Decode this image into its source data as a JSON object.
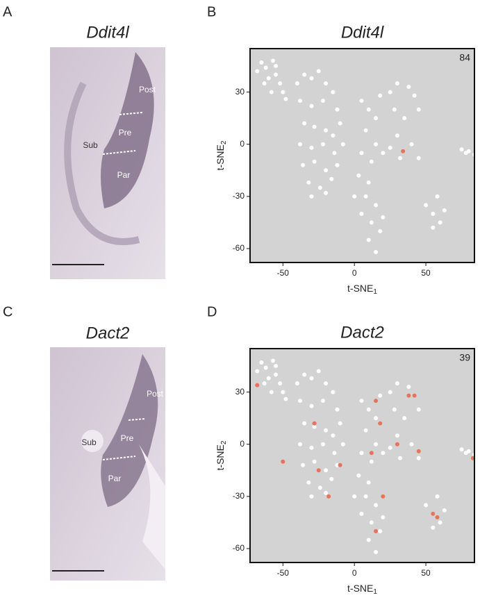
{
  "figure": {
    "panel_labels": [
      "A",
      "B",
      "C",
      "D"
    ],
    "images": [
      {
        "title": "Ddit4l",
        "regions": [
          "Sub",
          "Pre",
          "Par",
          "Post"
        ]
      },
      {
        "title": "Dact2",
        "regions": [
          "Sub",
          "Pre",
          "Par",
          "Post"
        ]
      }
    ]
  },
  "chart_data": [
    {
      "type": "scatter",
      "title": "Ddit4l",
      "annotation": "84",
      "xlabel": "t-SNE",
      "xlabel_subscript": "1",
      "ylabel": "t-SNE",
      "ylabel_subscript": "2",
      "xlim": [
        -73,
        84
      ],
      "ylim": [
        -68,
        55
      ],
      "xticks": [
        -50,
        0,
        50
      ],
      "yticks": [
        -60,
        -30,
        0,
        30
      ],
      "background": "#d3d3d3",
      "series": [
        {
          "color": "#ffffff",
          "x": [
            -68,
            -65,
            -62,
            -60,
            -57,
            -55,
            -52,
            -50,
            -63,
            -58,
            -48,
            -55,
            -40,
            -35,
            -30,
            -25,
            -20,
            -15,
            -38,
            -30,
            -22,
            -12,
            -35,
            -28,
            -20,
            -15,
            -10,
            -38,
            -30,
            -22,
            -14,
            -8,
            -36,
            -28,
            -20,
            -12,
            -32,
            -24,
            -16,
            -30,
            -20,
            5,
            10,
            15,
            18,
            8,
            15,
            5,
            12,
            20,
            3,
            10,
            8,
            15,
            0,
            12,
            18,
            10,
            15,
            20,
            5,
            25,
            30,
            38,
            42,
            28,
            35,
            45,
            30,
            40,
            45,
            32,
            25,
            50,
            55,
            58,
            60,
            63,
            55,
            75,
            80,
            84,
            78
          ],
          "values": [
            42,
            47,
            44,
            38,
            48,
            40,
            35,
            30,
            35,
            30,
            26,
            45,
            35,
            40,
            38,
            42,
            35,
            30,
            25,
            22,
            25,
            20,
            12,
            10,
            8,
            5,
            12,
            0,
            -2,
            0,
            -5,
            0,
            -12,
            -10,
            -15,
            -12,
            -22,
            -25,
            -20,
            -30,
            -28,
            25,
            20,
            15,
            28,
            8,
            0,
            -5,
            -10,
            -5,
            -18,
            -22,
            -30,
            -35,
            -30,
            -45,
            -50,
            -55,
            -62,
            -42,
            -40,
            30,
            35,
            33,
            28,
            20,
            15,
            20,
            5,
            0,
            -8,
            -8,
            -2,
            -35,
            -40,
            -30,
            -45,
            -38,
            -48,
            -3,
            -4,
            -6,
            -5
          ]
        },
        {
          "color": "#e8735a",
          "x": [
            34
          ],
          "values": [
            -4
          ]
        }
      ]
    },
    {
      "type": "scatter",
      "title": "Dact2",
      "annotation": "39",
      "xlabel": "t-SNE",
      "xlabel_subscript": "1",
      "ylabel": "t-SNE",
      "ylabel_subscript": "2",
      "xlim": [
        -73,
        84
      ],
      "ylim": [
        -68,
        55
      ],
      "xticks": [
        -50,
        0,
        50
      ],
      "yticks": [
        -60,
        -30,
        0,
        30
      ],
      "background": "#d3d3d3",
      "series": [
        {
          "color": "#ffffff",
          "x": [
            -68,
            -65,
            -62,
            -60,
            -57,
            -55,
            -52,
            -50,
            -63,
            -58,
            -48,
            -55,
            -40,
            -35,
            -30,
            -25,
            -20,
            -15,
            -38,
            -30,
            -22,
            -12,
            -35,
            -28,
            -20,
            -15,
            -10,
            -38,
            -30,
            -22,
            -14,
            -8,
            -36,
            -28,
            -20,
            -12,
            -32,
            -24,
            -16,
            -30,
            -20,
            5,
            10,
            15,
            18,
            8,
            15,
            5,
            12,
            20,
            3,
            10,
            8,
            15,
            0,
            12,
            18,
            10,
            15,
            20,
            5,
            25,
            30,
            38,
            42,
            28,
            35,
            45,
            30,
            40,
            45,
            32,
            25,
            50,
            55,
            58,
            60,
            63,
            55,
            75,
            80,
            84,
            78
          ],
          "values": [
            42,
            47,
            44,
            38,
            48,
            40,
            35,
            30,
            35,
            30,
            26,
            45,
            35,
            40,
            38,
            42,
            35,
            30,
            25,
            22,
            25,
            20,
            12,
            10,
            8,
            5,
            12,
            0,
            -2,
            0,
            -5,
            0,
            -12,
            -10,
            -15,
            -12,
            -22,
            -25,
            -20,
            -30,
            -28,
            25,
            20,
            15,
            28,
            8,
            0,
            -5,
            -10,
            -5,
            -18,
            -22,
            -30,
            -35,
            -30,
            -45,
            -50,
            -55,
            -62,
            -42,
            -40,
            30,
            35,
            33,
            28,
            20,
            15,
            20,
            5,
            0,
            -8,
            -8,
            -2,
            -35,
            -40,
            -30,
            -45,
            -38,
            -48,
            -3,
            -4,
            -6,
            -5
          ]
        },
        {
          "color": "#e8735a",
          "x": [
            -68,
            -28,
            -25,
            -18,
            -10,
            15,
            18,
            12,
            30,
            38,
            42,
            45,
            20,
            15,
            55,
            58,
            83,
            -50
          ],
          "values": [
            34,
            12,
            -15,
            -30,
            -12,
            25,
            12,
            -5,
            0,
            28,
            28,
            -4,
            -30,
            -50,
            -40,
            -42,
            -8,
            -10
          ]
        }
      ]
    }
  ]
}
